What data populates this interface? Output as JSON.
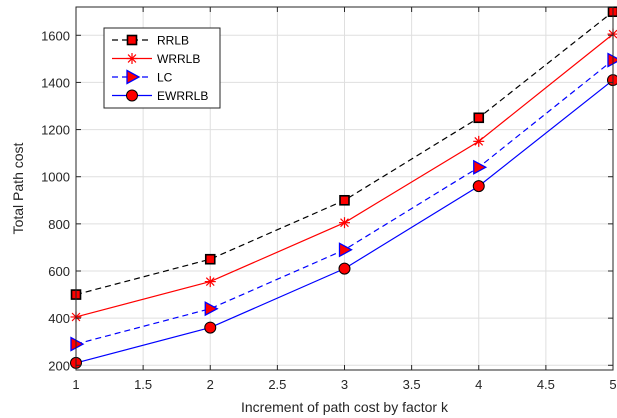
{
  "chart_data": {
    "type": "line",
    "title": "",
    "xlabel": "Increment of path cost by factor k",
    "ylabel": "Total Path cost",
    "x": [
      1,
      2,
      3,
      4,
      5
    ],
    "xlim": [
      1,
      5
    ],
    "ylim": [
      180,
      1720
    ],
    "xticks": [
      "1",
      "1.5",
      "2",
      "2.5",
      "3",
      "3.5",
      "4",
      "4.5",
      "5"
    ],
    "yticks": [
      "200",
      "400",
      "600",
      "800",
      "1000",
      "1200",
      "1400",
      "1600"
    ],
    "grid": true,
    "legend_position": "top-left",
    "series": [
      {
        "name": "RRLB",
        "values": [
          500,
          650,
          900,
          1250,
          1700
        ],
        "color": "#000000",
        "line_style": "dashed",
        "marker": "square",
        "marker_fill": "#ff0000"
      },
      {
        "name": "WRRLB",
        "values": [
          405,
          555,
          805,
          1150,
          1605
        ],
        "color": "#ff0000",
        "line_style": "solid",
        "marker": "asterisk",
        "marker_fill": "#ff0000"
      },
      {
        "name": "LC",
        "values": [
          290,
          440,
          690,
          1040,
          1495
        ],
        "color": "#0000ff",
        "line_style": "dashed",
        "marker": "triangle-right",
        "marker_fill": "#ff0000"
      },
      {
        "name": "EWRRLB",
        "values": [
          210,
          360,
          610,
          960,
          1410
        ],
        "color": "#0000ff",
        "line_style": "solid",
        "marker": "circle",
        "marker_fill": "#ff0000"
      }
    ]
  }
}
